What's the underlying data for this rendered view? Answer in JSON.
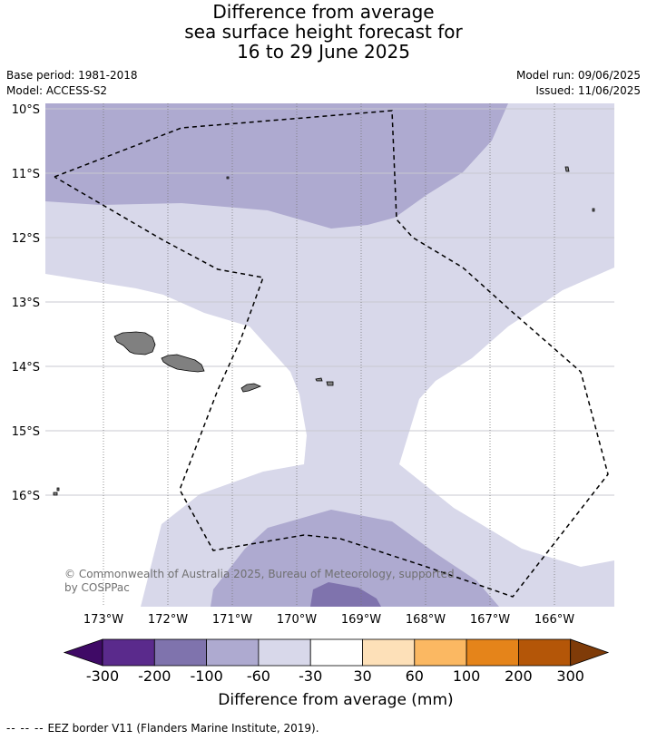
{
  "title": {
    "line1": "Difference from average",
    "line2": "sea surface height forecast for",
    "line3": "16 to 29 June 2025"
  },
  "meta": {
    "base_period": "Base period: 1981-2018",
    "model": "Model: ACCESS-S2",
    "model_run": "Model run: 09/06/2025",
    "issued": "Issued: 11/06/2025"
  },
  "map": {
    "lat_labels": [
      "10°S",
      "11°S",
      "12°S",
      "13°S",
      "14°S",
      "15°S",
      "16°S"
    ],
    "lon_labels": [
      "173°W",
      "172°W",
      "171°W",
      "170°W",
      "169°W",
      "168°W",
      "167°W",
      "166°W"
    ],
    "credit_line1": "© Commonwealth of Australia 2025, Bureau of Meteorology, supported",
    "credit_line2": "by COSPPac",
    "colors": {
      "lt_300": "#3f0a66",
      "m300_m200": "#5a2a8c",
      "m200_m100": "#7f73ad",
      "m100_m60": "#aeaad0",
      "m60_m30": "#d8d8ea",
      "m30_30": "#ffffff",
      "p30_60": "#fde0b8",
      "p60_100": "#fbb862",
      "p100_200": "#e5841a",
      "p200_300": "#b45608",
      "gt_300": "#7f3b08",
      "land": "#808080",
      "grid": "#c8c8d0",
      "eez": "#000000"
    }
  },
  "colorbar": {
    "tick_labels": [
      "-300",
      "-200",
      "-100",
      "-60",
      "-30",
      "30",
      "60",
      "100",
      "200",
      "300"
    ],
    "label": "Difference from average (mm)"
  },
  "footnote": {
    "dashes": "-- -- --",
    "text": "EEZ border V11 (Flanders Marine Institute, 2019)."
  }
}
